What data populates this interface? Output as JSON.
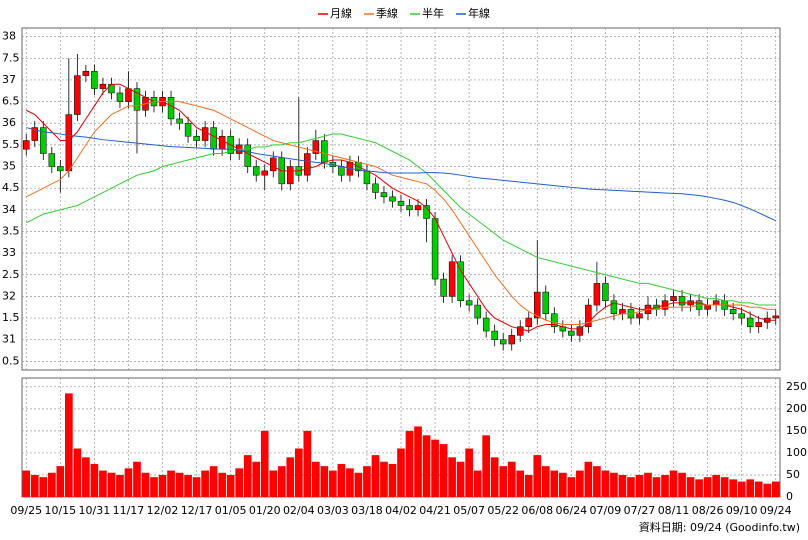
{
  "chart_data": {
    "type": "candlestick",
    "categories": [
      "09/25",
      null,
      null,
      null,
      "10/15",
      null,
      null,
      null,
      "10/31",
      null,
      null,
      null,
      "11/17",
      null,
      null,
      null,
      "12/02",
      null,
      null,
      null,
      "12/17",
      null,
      null,
      null,
      "01/05",
      null,
      null,
      null,
      "01/20",
      null,
      null,
      null,
      "02/04",
      null,
      null,
      null,
      "03/03",
      null,
      null,
      null,
      "03/18",
      null,
      null,
      null,
      "04/02",
      null,
      null,
      null,
      "04/21",
      null,
      null,
      null,
      "05/07",
      null,
      null,
      null,
      "05/22",
      null,
      null,
      null,
      "06/08",
      null,
      null,
      null,
      "06/24",
      null,
      null,
      null,
      "07/09",
      null,
      null,
      null,
      "07/27",
      null,
      null,
      null,
      "08/11",
      null,
      null,
      null,
      "08/26",
      null,
      null,
      null,
      "09/10",
      null,
      null,
      null,
      "09/24"
    ],
    "open": [
      35.4,
      35.6,
      35.9,
      35.3,
      35.0,
      34.9,
      36.2,
      37.1,
      37.2,
      36.8,
      36.9,
      36.7,
      36.5,
      36.8,
      36.3,
      36.6,
      36.4,
      36.6,
      36.1,
      36.0,
      35.7,
      35.6,
      35.9,
      35.4,
      35.7,
      35.3,
      35.5,
      35.0,
      34.8,
      34.9,
      35.2,
      34.6,
      35.0,
      34.8,
      35.3,
      35.6,
      35.1,
      35.0,
      34.8,
      35.1,
      34.9,
      34.6,
      34.4,
      34.3,
      34.2,
      34.1,
      34.0,
      34.1,
      33.8,
      32.4,
      32.0,
      32.8,
      31.9,
      31.8,
      31.5,
      31.2,
      31.0,
      30.9,
      31.1,
      31.3,
      31.5,
      32.1,
      31.6,
      31.3,
      31.2,
      31.1,
      31.3,
      31.8,
      32.3,
      31.9,
      31.6,
      31.7,
      31.5,
      31.6,
      31.8,
      31.7,
      31.9,
      32.0,
      31.8,
      31.9,
      31.7,
      31.8,
      31.9,
      31.7,
      31.6,
      31.5,
      31.3,
      31.4,
      31.5
    ],
    "high": [
      35.75,
      36.05,
      36.05,
      35.45,
      35.15,
      37.5,
      37.6,
      37.35,
      37.35,
      37.05,
      37.05,
      36.85,
      37.2,
      36.95,
      36.75,
      36.75,
      36.75,
      36.75,
      36.25,
      36.15,
      35.85,
      36.05,
      36.05,
      35.85,
      35.85,
      35.65,
      35.65,
      35.15,
      35.05,
      35.35,
      35.35,
      35.15,
      36.6,
      35.45,
      35.85,
      35.75,
      35.25,
      35.15,
      35.25,
      35.25,
      35.05,
      34.75,
      34.55,
      34.45,
      34.35,
      34.25,
      34.25,
      34.25,
      33.95,
      32.55,
      32.95,
      32.95,
      32.05,
      31.95,
      31.65,
      31.35,
      31.15,
      31.25,
      31.45,
      31.65,
      33.3,
      32.25,
      31.75,
      31.45,
      31.35,
      31.45,
      31.95,
      32.8,
      32.45,
      32.05,
      31.85,
      31.85,
      31.75,
      32.0,
      31.95,
      32.05,
      32.15,
      32.15,
      32.05,
      32.05,
      31.95,
      32.05,
      32.05,
      31.85,
      31.75,
      31.65,
      31.55,
      31.65,
      31.7
    ],
    "low": [
      35.25,
      35.45,
      35.15,
      34.85,
      34.4,
      34.75,
      36.05,
      36.95,
      36.65,
      36.65,
      36.55,
      36.35,
      36.35,
      35.3,
      36.15,
      36.25,
      36.25,
      35.95,
      35.85,
      35.55,
      35.45,
      35.45,
      35.25,
      35.25,
      35.15,
      35.15,
      34.85,
      34.65,
      34.45,
      34.75,
      34.45,
      34.45,
      34.65,
      34.65,
      35.15,
      34.95,
      34.85,
      34.65,
      34.65,
      34.75,
      34.45,
      34.25,
      34.15,
      34.05,
      33.95,
      33.85,
      33.85,
      33.25,
      32.25,
      31.85,
      31.85,
      31.75,
      31.65,
      31.35,
      31.05,
      30.85,
      30.75,
      30.75,
      30.95,
      31.15,
      31.35,
      31.45,
      31.15,
      31.05,
      30.95,
      30.95,
      31.15,
      31.65,
      31.75,
      31.45,
      31.45,
      31.35,
      31.35,
      31.45,
      31.55,
      31.55,
      31.75,
      31.65,
      31.65,
      31.55,
      31.55,
      31.65,
      31.55,
      31.45,
      31.35,
      31.15,
      31.15,
      31.25,
      31.35
    ],
    "close": [
      35.6,
      35.9,
      35.3,
      35.0,
      34.9,
      36.2,
      37.1,
      37.2,
      36.8,
      36.9,
      36.7,
      36.5,
      36.8,
      36.3,
      36.6,
      36.4,
      36.6,
      36.1,
      36.0,
      35.7,
      35.6,
      35.9,
      35.4,
      35.7,
      35.3,
      35.5,
      35.0,
      34.8,
      34.9,
      35.2,
      34.6,
      35.0,
      34.8,
      35.3,
      35.6,
      35.1,
      35.0,
      34.8,
      35.1,
      34.9,
      34.6,
      34.4,
      34.3,
      34.2,
      34.1,
      34.0,
      34.1,
      33.8,
      32.4,
      32.0,
      32.8,
      31.9,
      31.8,
      31.5,
      31.2,
      31.0,
      30.9,
      31.1,
      31.3,
      31.5,
      32.1,
      31.6,
      31.3,
      31.2,
      31.1,
      31.3,
      31.8,
      32.3,
      31.9,
      31.6,
      31.7,
      31.5,
      31.6,
      31.8,
      31.7,
      31.9,
      32.0,
      31.8,
      31.9,
      31.7,
      31.8,
      31.9,
      31.7,
      31.6,
      31.5,
      31.3,
      31.4,
      31.5,
      31.55
    ],
    "up_color": "#ff0000",
    "down_color": "#00cc00",
    "series": [
      {
        "name": "月線",
        "color": "#e00000",
        "values": [
          36.3,
          36.2,
          36.0,
          35.8,
          35.6,
          35.6,
          35.8,
          36.1,
          36.4,
          36.7,
          36.9,
          36.9,
          36.8,
          36.7,
          36.6,
          36.5,
          36.5,
          36.4,
          36.3,
          36.1,
          35.9,
          35.8,
          35.7,
          35.6,
          35.5,
          35.4,
          35.3,
          35.2,
          35.1,
          35.0,
          34.9,
          34.9,
          34.9,
          34.95,
          35.0,
          35.1,
          35.15,
          35.15,
          35.1,
          35.0,
          34.9,
          34.8,
          34.65,
          34.5,
          34.4,
          34.3,
          34.2,
          34.05,
          33.8,
          33.4,
          33.0,
          32.6,
          32.3,
          32.0,
          31.7,
          31.5,
          31.4,
          31.3,
          31.25,
          31.2,
          31.3,
          31.35,
          31.35,
          31.3,
          31.25,
          31.25,
          31.4,
          31.6,
          31.75,
          31.85,
          31.8,
          31.75,
          31.7,
          31.7,
          31.75,
          31.8,
          31.85,
          31.85,
          31.85,
          31.85,
          31.8,
          31.8,
          31.8,
          31.75,
          31.7,
          31.6,
          31.5,
          31.45,
          31.45
        ]
      },
      {
        "name": "季線",
        "color": "#f07020",
        "values": [
          34.3,
          34.4,
          34.5,
          34.6,
          34.7,
          34.9,
          35.2,
          35.5,
          35.8,
          36.0,
          36.2,
          36.3,
          36.4,
          36.4,
          36.45,
          36.5,
          36.5,
          36.5,
          36.5,
          36.45,
          36.4,
          36.35,
          36.3,
          36.2,
          36.1,
          36.0,
          35.9,
          35.8,
          35.7,
          35.6,
          35.55,
          35.5,
          35.45,
          35.4,
          35.35,
          35.3,
          35.25,
          35.2,
          35.15,
          35.1,
          35.05,
          35.0,
          34.9,
          34.8,
          34.75,
          34.7,
          34.65,
          34.6,
          34.45,
          34.25,
          34.0,
          33.7,
          33.4,
          33.1,
          32.8,
          32.5,
          32.25,
          32.0,
          31.8,
          31.65,
          31.55,
          31.45,
          31.4,
          31.35,
          31.35,
          31.35,
          31.4,
          31.45,
          31.5,
          31.55,
          31.6,
          31.6,
          31.65,
          31.7,
          31.7,
          31.75,
          31.75,
          31.75,
          31.75,
          31.8,
          31.8,
          31.8,
          31.8,
          31.8,
          31.8,
          31.75,
          31.75,
          31.7,
          31.7
        ]
      },
      {
        "name": "半年",
        "color": "#33cc33",
        "values": [
          33.7,
          33.8,
          33.9,
          33.95,
          34.0,
          34.05,
          34.1,
          34.2,
          34.3,
          34.4,
          34.5,
          34.6,
          34.7,
          34.8,
          34.85,
          34.9,
          35.0,
          35.05,
          35.1,
          35.15,
          35.2,
          35.25,
          35.3,
          35.3,
          35.35,
          35.4,
          35.4,
          35.45,
          35.45,
          35.5,
          35.5,
          35.55,
          35.55,
          35.6,
          35.65,
          35.7,
          35.75,
          35.75,
          35.7,
          35.65,
          35.6,
          35.55,
          35.45,
          35.35,
          35.25,
          35.15,
          35.0,
          34.85,
          34.65,
          34.45,
          34.25,
          34.05,
          33.9,
          33.75,
          33.6,
          33.45,
          33.3,
          33.2,
          33.1,
          33.0,
          32.9,
          32.85,
          32.8,
          32.75,
          32.7,
          32.65,
          32.6,
          32.55,
          32.5,
          32.45,
          32.4,
          32.35,
          32.3,
          32.3,
          32.25,
          32.2,
          32.15,
          32.1,
          32.05,
          32.0,
          31.95,
          31.95,
          31.9,
          31.9,
          31.85,
          31.85,
          31.8,
          31.8,
          31.8
        ]
      },
      {
        "name": "年線",
        "color": "#2060d0",
        "values": [
          35.9,
          35.85,
          35.8,
          35.78,
          35.75,
          35.72,
          35.7,
          35.68,
          35.65,
          35.62,
          35.6,
          35.58,
          35.56,
          35.54,
          35.52,
          35.5,
          35.48,
          35.46,
          35.45,
          35.44,
          35.43,
          35.42,
          35.41,
          35.4,
          35.4,
          35.38,
          35.35,
          35.3,
          35.27,
          35.24,
          35.21,
          35.18,
          35.15,
          35.12,
          35.1,
          35.07,
          35.04,
          35.0,
          34.96,
          34.92,
          34.9,
          34.88,
          34.86,
          34.85,
          34.85,
          34.85,
          34.85,
          34.86,
          34.86,
          34.85,
          34.83,
          34.8,
          34.77,
          34.74,
          34.72,
          34.7,
          34.68,
          34.66,
          34.64,
          34.62,
          34.6,
          34.58,
          34.56,
          34.54,
          34.52,
          34.5,
          34.48,
          34.47,
          34.46,
          34.45,
          34.44,
          34.43,
          34.42,
          34.41,
          34.4,
          34.39,
          34.38,
          34.37,
          34.35,
          34.33,
          34.3,
          34.26,
          34.22,
          34.17,
          34.1,
          34.02,
          33.93,
          33.84,
          33.75
        ]
      }
    ],
    "ylim": [
      30.3,
      38.2
    ],
    "yticks": [
      38,
      {
        "value": 37.5,
        "label": "7.5"
      },
      37,
      {
        "value": 36.5,
        "label": "6.5"
      },
      36,
      {
        "value": 35.5,
        "label": "5.5"
      },
      35,
      {
        "value": 34.5,
        "label": "4.5"
      },
      34,
      {
        "value": 33.5,
        "label": "3.5"
      },
      33,
      {
        "value": 32.5,
        "label": "2.5"
      },
      32,
      {
        "value": 31.5,
        "label": "1.5"
      },
      31,
      {
        "value": 30.5,
        "label": "0.5"
      }
    ],
    "grid": true,
    "volume": {
      "color": "#ff0000",
      "ylim": [
        0,
        270
      ],
      "yticks": [
        0,
        50,
        100,
        150,
        200,
        250
      ],
      "values": [
        60,
        50,
        45,
        55,
        70,
        235,
        110,
        90,
        75,
        60,
        55,
        50,
        65,
        80,
        55,
        45,
        50,
        60,
        55,
        50,
        45,
        60,
        70,
        55,
        50,
        65,
        95,
        80,
        150,
        60,
        70,
        90,
        110,
        150,
        80,
        70,
        60,
        75,
        65,
        55,
        70,
        95,
        80,
        75,
        110,
        150,
        160,
        140,
        130,
        120,
        90,
        80,
        110,
        60,
        140,
        90,
        70,
        80,
        60,
        50,
        95,
        70,
        60,
        55,
        45,
        60,
        80,
        70,
        60,
        55,
        50,
        45,
        50,
        55,
        45,
        50,
        60,
        55,
        45,
        40,
        45,
        50,
        45,
        40,
        35,
        40,
        35,
        30,
        35
      ]
    },
    "source": "資料日期: 09/24 (Goodinfo.tw)"
  }
}
